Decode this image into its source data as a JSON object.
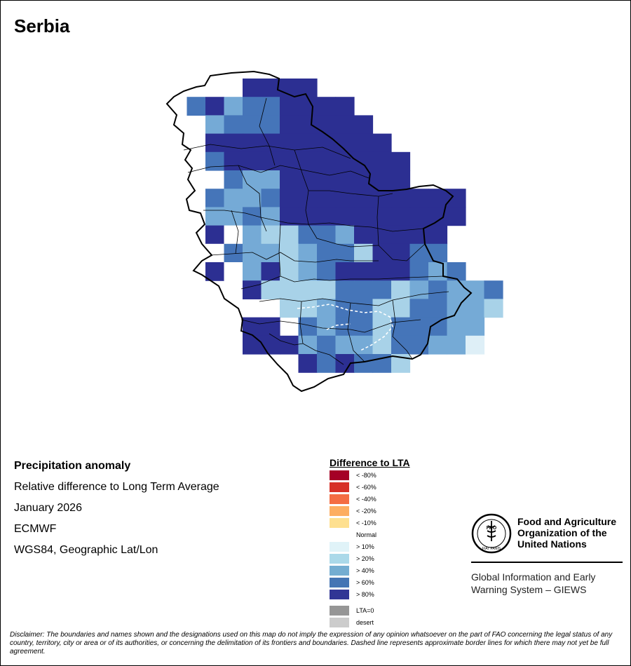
{
  "map": {
    "title": "Serbia",
    "colors": {
      "pale_blue": "#deeff7",
      "light_blue": "#a8d2e8",
      "mid_blue": "#75aad6",
      "blue": "#4575b9",
      "dark_blue": "#2c2f92",
      "white": "#ffffff",
      "border": "#000000"
    }
  },
  "info": {
    "variable": "Precipitation anomaly",
    "description": "Relative difference to Long Term Average",
    "period": "January 2026",
    "source": "ECMWF",
    "projection": "WGS84, Geographic Lat/Lon"
  },
  "legend": {
    "title": "Difference to LTA",
    "items": [
      {
        "label": "< -80%",
        "color": "#a50026"
      },
      {
        "label": "< -60%",
        "color": "#d73027"
      },
      {
        "label": "< -40%",
        "color": "#f46d43"
      },
      {
        "label": "< -20%",
        "color": "#fdae61"
      },
      {
        "label": "< -10%",
        "color": "#fee090"
      },
      {
        "label": "Normal",
        "color": "#ffffff"
      },
      {
        "label": "> 10%",
        "color": "#e0f3f8"
      },
      {
        "label": "> 20%",
        "color": "#abd9e9"
      },
      {
        "label": "> 40%",
        "color": "#74add1"
      },
      {
        "label": "> 60%",
        "color": "#4575b4"
      },
      {
        "label": "> 80%",
        "color": "#313695"
      }
    ],
    "special": [
      {
        "label": "LTA=0",
        "color": "#969696"
      },
      {
        "label": "desert",
        "color": "#cccccc"
      }
    ]
  },
  "fao": {
    "name_line1": "Food and Agriculture",
    "name_line2": "Organization of the",
    "name_line3": "United Nations",
    "emblem_text": "FAO",
    "emblem_motto": "FIAT PANIS",
    "giews_line1": "Global Information and Early",
    "giews_line2": "Warning System – GIEWS"
  },
  "disclaimer": "Disclaimer: The boundaries and names shown and the designations used on this map do not imply the expression of any opinion whatsoever on the part of FAO concerning the legal status of any country, territory, city or area or of its authorities, or concerning the delimitation of its frontiers and boundaries. Dashed line represents approximate border lines for which there may not yet be full agreement."
}
